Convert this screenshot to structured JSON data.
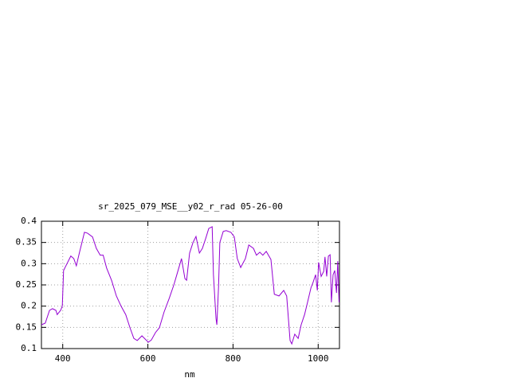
{
  "chart_data": {
    "type": "line",
    "title": "sr_2025_079_MSE__y02_r_rad 05-26-00",
    "xlabel": "nm",
    "xlim": [
      350,
      1050
    ],
    "xticks": [
      400,
      600,
      800,
      1000
    ],
    "ylim": [
      0.1,
      0.4
    ],
    "yticks": [
      0.1,
      0.15,
      0.2,
      0.25,
      0.3,
      0.35,
      0.4
    ],
    "grid": true,
    "series": [
      {
        "color": "#9400d3",
        "x": [
          350,
          359,
          369,
          376,
          384,
          387,
          395,
          399,
          402,
          410,
          419,
          426,
          432,
          439,
          451,
          458,
          470,
          479,
          488,
          495,
          503,
          515,
          526,
          537,
          548,
          558,
          567,
          575,
          586,
          601,
          608,
          618,
          627,
          638,
          650,
          661,
          668,
          679,
          687,
          691,
          698,
          706,
          713,
          721,
          728,
          736,
          743,
          751,
          754,
          760,
          762,
          766,
          769,
          777,
          784,
          795,
          803,
          810,
          818,
          829,
          837,
          848,
          855,
          863,
          870,
          878,
          889,
          897,
          908,
          919,
          926,
          934,
          938,
          945,
          953,
          960,
          968,
          975,
          983,
          988,
          994,
          998,
          1001,
          1007,
          1013,
          1016,
          1020,
          1024,
          1028,
          1031,
          1035,
          1039,
          1043,
          1046,
          1049
        ],
        "values": [
          0.156,
          0.16,
          0.19,
          0.194,
          0.19,
          0.18,
          0.19,
          0.2,
          0.284,
          0.3,
          0.318,
          0.312,
          0.295,
          0.325,
          0.374,
          0.372,
          0.363,
          0.336,
          0.32,
          0.32,
          0.29,
          0.26,
          0.224,
          0.2,
          0.18,
          0.149,
          0.124,
          0.119,
          0.13,
          0.115,
          0.12,
          0.138,
          0.149,
          0.186,
          0.218,
          0.25,
          0.274,
          0.312,
          0.265,
          0.261,
          0.325,
          0.35,
          0.364,
          0.325,
          0.336,
          0.36,
          0.383,
          0.387,
          0.274,
          0.171,
          0.156,
          0.246,
          0.35,
          0.376,
          0.378,
          0.374,
          0.363,
          0.312,
          0.291,
          0.312,
          0.344,
          0.336,
          0.32,
          0.327,
          0.32,
          0.329,
          0.31,
          0.228,
          0.224,
          0.237,
          0.224,
          0.119,
          0.111,
          0.134,
          0.124,
          0.156,
          0.18,
          0.209,
          0.243,
          0.256,
          0.274,
          0.237,
          0.303,
          0.27,
          0.282,
          0.316,
          0.27,
          0.318,
          0.321,
          0.209,
          0.274,
          0.284,
          0.231,
          0.306,
          0.209
        ]
      }
    ]
  }
}
